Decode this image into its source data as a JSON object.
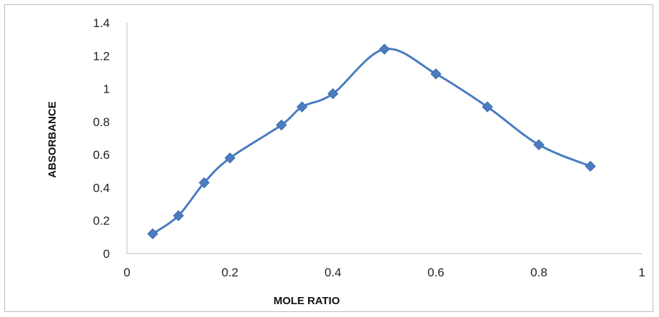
{
  "chart_data": {
    "type": "line",
    "title": "",
    "xlabel": "MOLE RATIO",
    "ylabel": "ABSORBANCE",
    "xlim": [
      0,
      1
    ],
    "ylim": [
      0,
      1.4
    ],
    "x_ticks": [
      "0",
      "0.2",
      "0.4",
      "0.6",
      "0.8",
      "1"
    ],
    "y_ticks": [
      "0",
      "0.2",
      "0.4",
      "0.6",
      "0.8",
      "1",
      "1.2",
      "1.4"
    ],
    "grid": false,
    "legend": "none",
    "series_color": "#4a7cbf",
    "series": [
      {
        "x": [
          0.05,
          0.1,
          0.15,
          0.2,
          0.3,
          0.34,
          0.4,
          0.5,
          0.6,
          0.7,
          0.8,
          0.9
        ],
        "y": [
          0.12,
          0.23,
          0.43,
          0.58,
          0.78,
          0.89,
          0.97,
          1.24,
          1.09,
          0.89,
          0.66,
          0.53
        ]
      }
    ]
  }
}
